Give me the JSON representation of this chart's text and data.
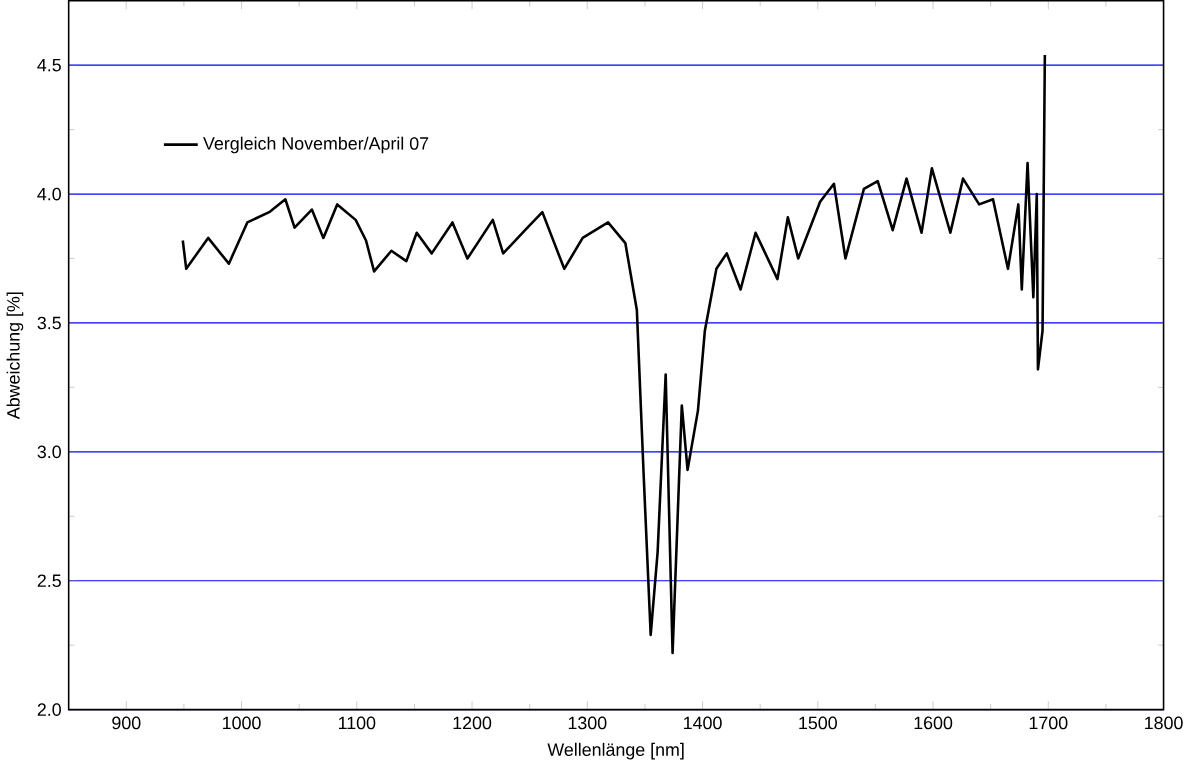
{
  "chart_data": {
    "type": "line",
    "xlabel": "Wellenlänge [nm]",
    "ylabel": "Abweichung [%]",
    "xlim": [
      850,
      1800
    ],
    "xticks": [
      900,
      1000,
      1100,
      1200,
      1300,
      1400,
      1500,
      1600,
      1700,
      1800
    ],
    "ylim": [
      2.0,
      4.75
    ],
    "yticks": [
      {
        "value": 2.0,
        "label": "2.0"
      },
      {
        "value": 2.5,
        "label": "2.5"
      },
      {
        "value": 3.0,
        "label": "3.0"
      },
      {
        "value": 3.5,
        "label": "3.5"
      },
      {
        "value": 4.0,
        "label": "4.0"
      },
      {
        "value": 4.5,
        "label": "4.5"
      }
    ],
    "grid": "y",
    "legend": "top left",
    "marker": "none",
    "line_style": "solid",
    "series": [
      {
        "name": "Vergleich November/April 07",
        "color": "#000000",
        "x": [
          949,
          952,
          971,
          989,
          1005,
          1024,
          1038,
          1046,
          1061,
          1071,
          1083,
          1099,
          1108,
          1115,
          1130,
          1143,
          1152,
          1165,
          1183,
          1196,
          1218,
          1227,
          1246,
          1261,
          1280,
          1296,
          1318,
          1333,
          1343,
          1349,
          1355,
          1361,
          1368,
          1374,
          1382,
          1387,
          1396,
          1402,
          1412,
          1421,
          1433,
          1446,
          1465,
          1474,
          1483,
          1502,
          1514,
          1524,
          1540,
          1552,
          1565,
          1577,
          1590,
          1599,
          1615,
          1626,
          1640,
          1652,
          1665,
          1674,
          1677,
          1682,
          1687,
          1690,
          1691,
          1695,
          1697
        ],
        "values": [
          3.82,
          3.71,
          3.83,
          3.73,
          3.89,
          3.93,
          3.98,
          3.87,
          3.94,
          3.83,
          3.96,
          3.9,
          3.82,
          3.7,
          3.78,
          3.74,
          3.85,
          3.77,
          3.89,
          3.75,
          3.9,
          3.77,
          3.86,
          3.93,
          3.71,
          3.83,
          3.89,
          3.81,
          3.55,
          2.9,
          2.29,
          2.61,
          3.3,
          2.22,
          3.18,
          2.93,
          3.16,
          3.47,
          3.71,
          3.77,
          3.63,
          3.85,
          3.67,
          3.91,
          3.75,
          3.97,
          4.04,
          3.75,
          4.02,
          4.05,
          3.86,
          4.06,
          3.85,
          4.1,
          3.85,
          4.06,
          3.96,
          3.98,
          3.71,
          3.96,
          3.63,
          4.12,
          3.6,
          4.0,
          3.32,
          3.47,
          4.54
        ]
      }
    ]
  }
}
